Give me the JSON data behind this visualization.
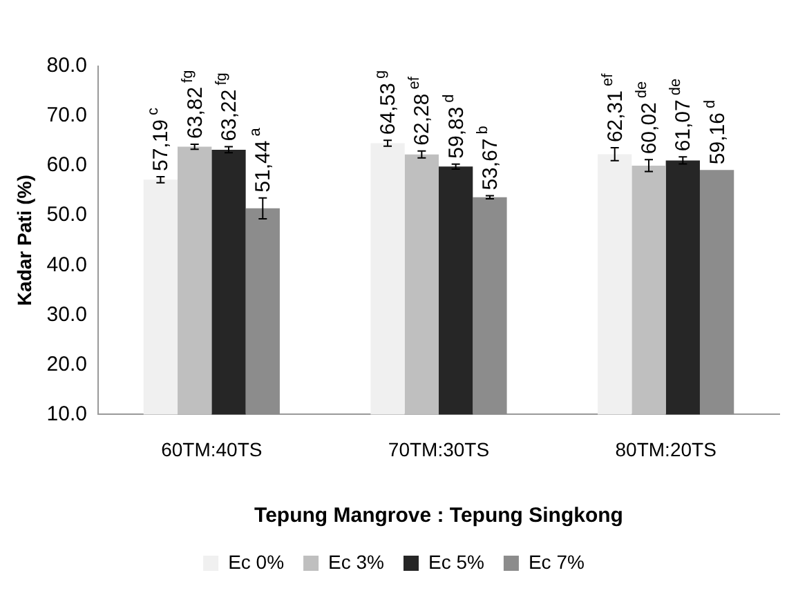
{
  "chart_data": {
    "type": "bar",
    "xlabel": "Tepung Mangrove : Tepung Singkong",
    "ylabel": "Kadar Pati (%)",
    "categories": [
      "60TM:40TS",
      "70TM:30TS",
      "80TM:20TS"
    ],
    "series": [
      {
        "name": "Ec 0%",
        "color": "#f0f0f0",
        "values": [
          57.19,
          64.53,
          62.31
        ],
        "errors": [
          0.6,
          0.6,
          1.3
        ],
        "value_labels": [
          "57,19$^{c}$",
          "64,53$^{g}$",
          "62,31$^{ef}$"
        ]
      },
      {
        "name": "Ec 3%",
        "color": "#bfbfbf",
        "values": [
          63.82,
          62.28,
          60.02
        ],
        "errors": [
          0.5,
          0.7,
          1.2
        ],
        "value_labels": [
          "63,82$^{fg}$",
          "62,28$^{ef}$",
          "60,02$^{de}$"
        ]
      },
      {
        "name": "Ec 5%",
        "color": "#262626",
        "values": [
          63.22,
          59.83,
          61.07
        ],
        "errors": [
          0.6,
          0.5,
          0.7
        ],
        "value_labels": [
          "63,22$^{fg}$",
          "59,83$^{d}$",
          "61,07$^{de}$"
        ]
      },
      {
        "name": "Ec 7%",
        "color": "#8c8c8c",
        "values": [
          51.44,
          53.67,
          59.16
        ],
        "errors": [
          2.1,
          0.3,
          null
        ],
        "value_labels": [
          "51,44$^{a}$",
          "53,67$^{b}$",
          "59,16$^{d}$"
        ]
      }
    ],
    "ylim": [
      10,
      80
    ],
    "yticks": [
      {
        "value": 10,
        "label": "10.0"
      },
      {
        "value": 20,
        "label": "20.0"
      },
      {
        "value": 30,
        "label": "30.0"
      },
      {
        "value": 40,
        "label": "40.0"
      },
      {
        "value": 50,
        "label": "50.0"
      },
      {
        "value": 60,
        "label": "60.0"
      },
      {
        "value": 70,
        "label": "70.0"
      },
      {
        "value": 80,
        "label": "80.0"
      }
    ],
    "grid": false,
    "legend": "bottom"
  }
}
